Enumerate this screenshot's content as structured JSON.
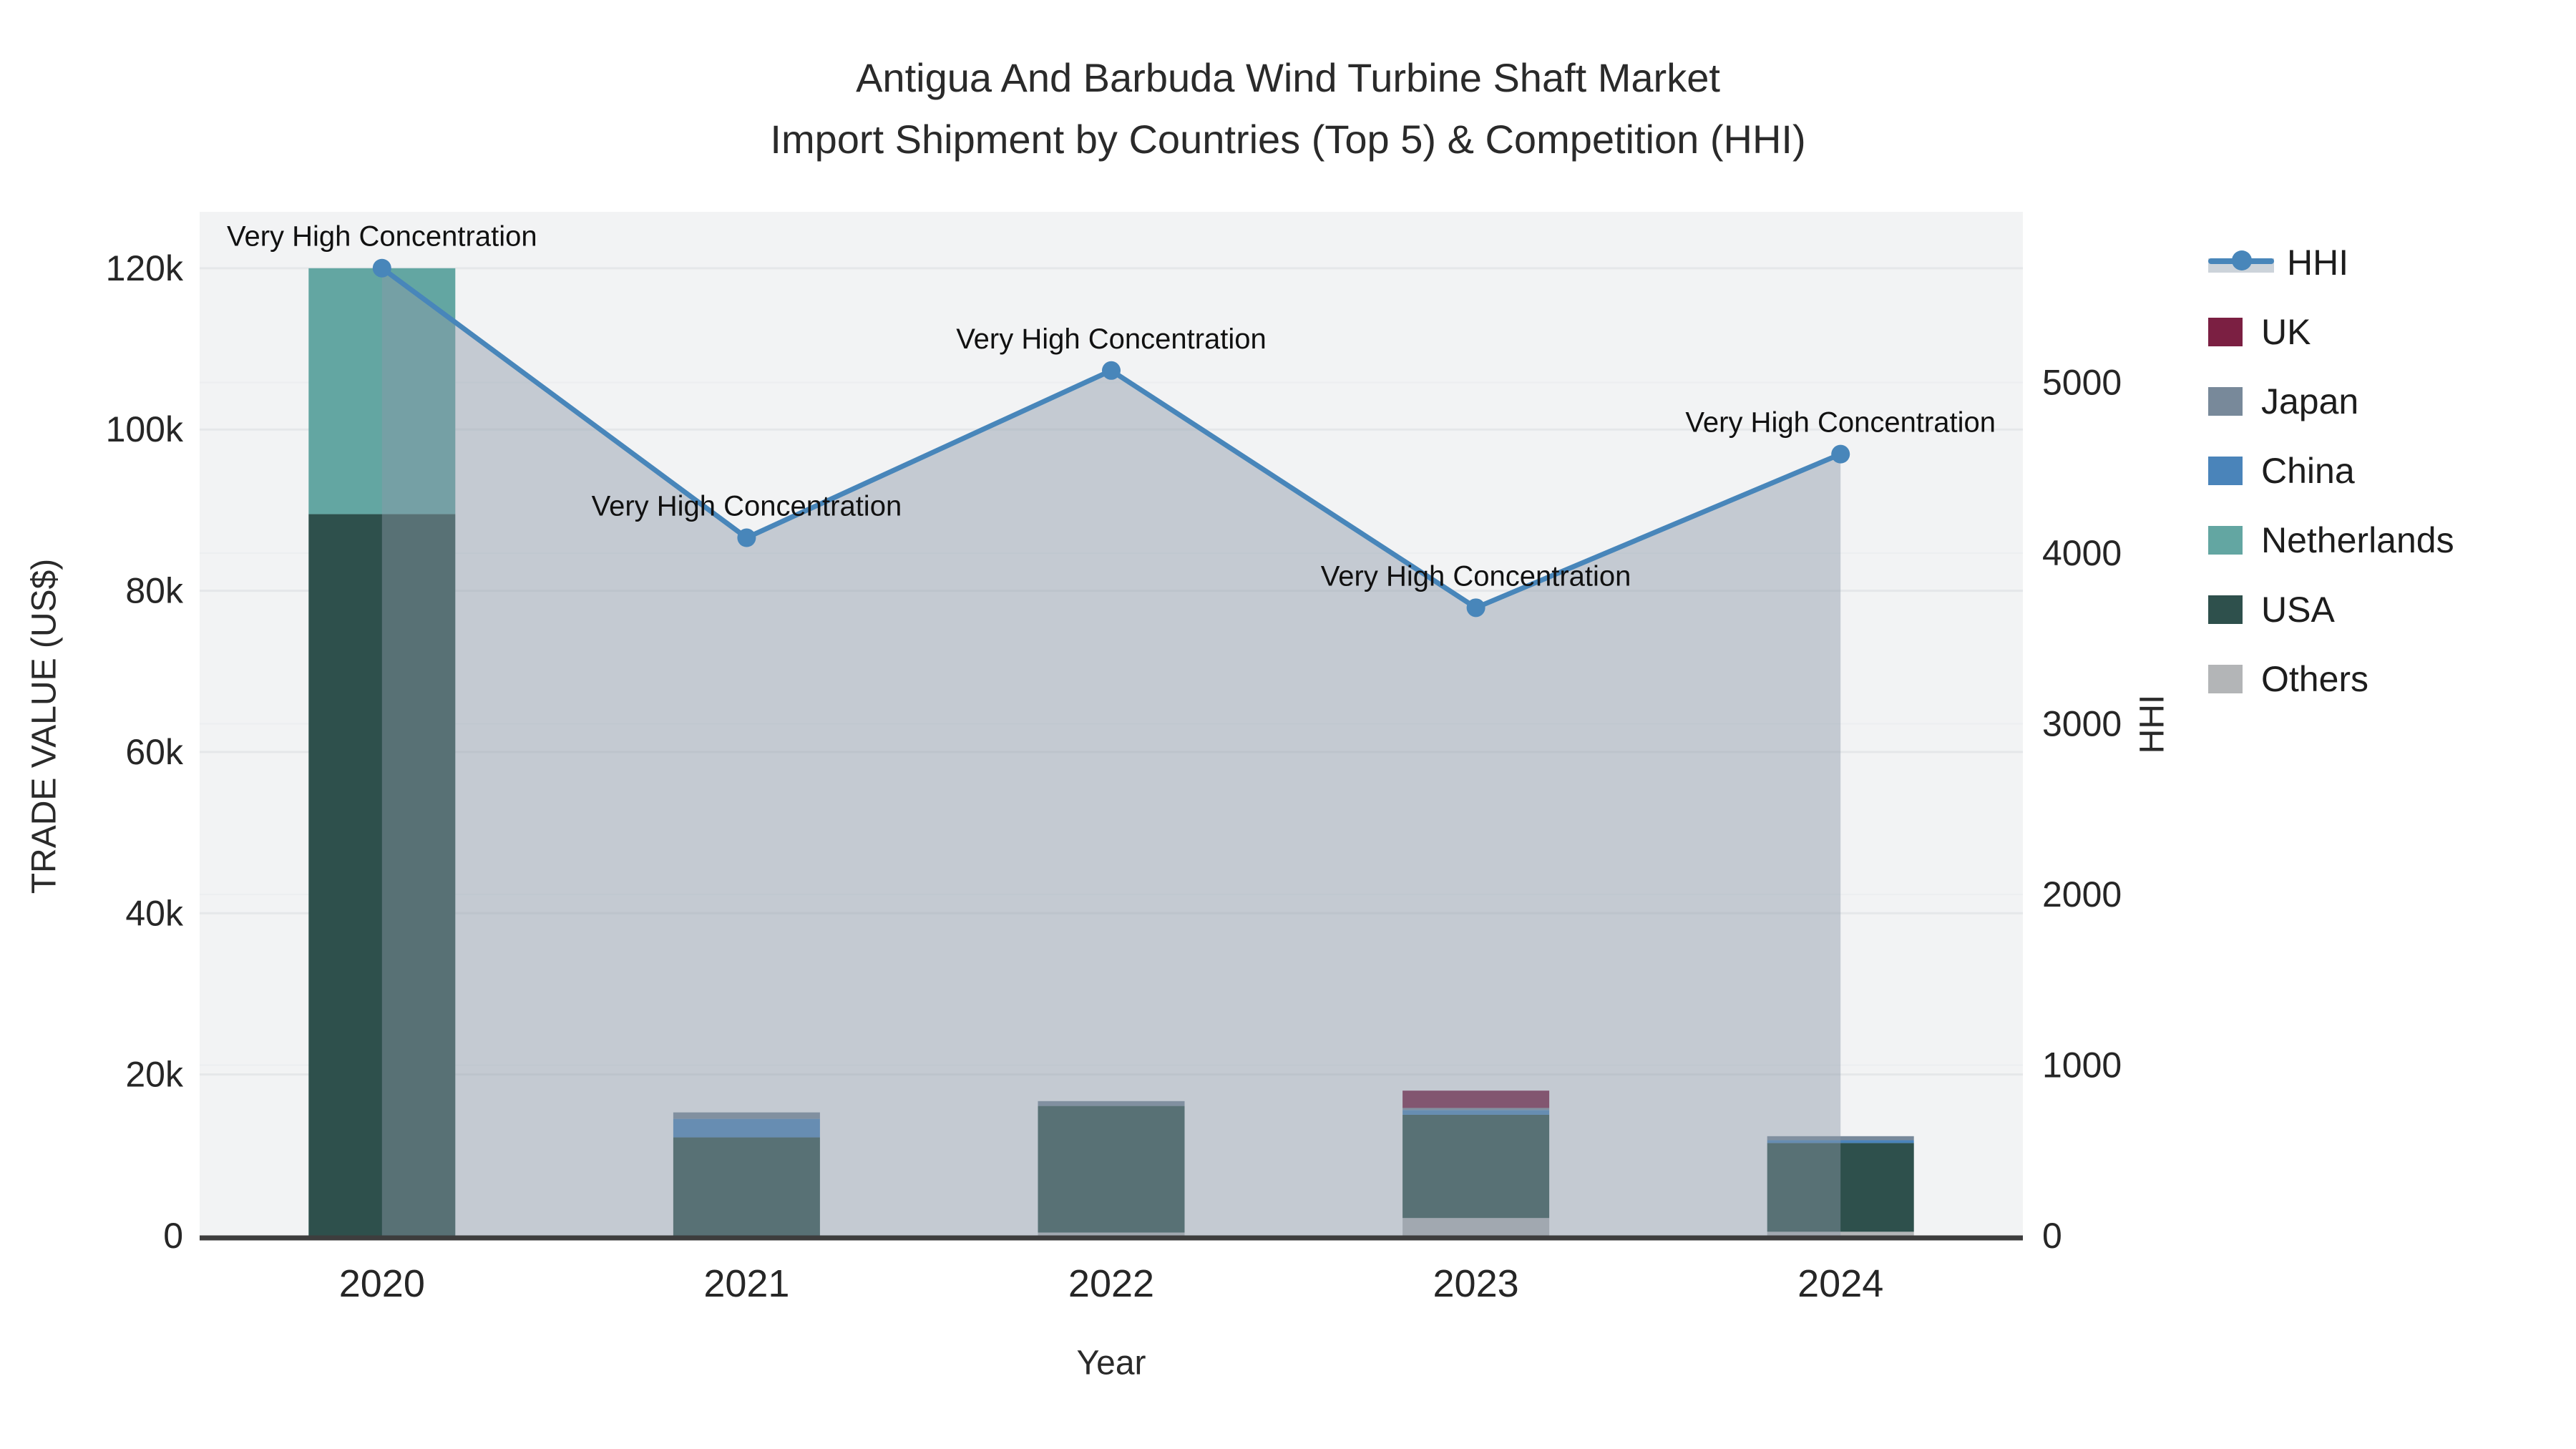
{
  "figure": {
    "title_line1": "Antigua And Barbuda Wind Turbine Shaft Market",
    "title_line2": "Import Shipment by Countries (Top 5) & Competition (HHI)",
    "x_axis_title": "Year",
    "y_axis_title_left": "TRADE VALUE (US$)",
    "y_axis_title_right": "HHI"
  },
  "chart_data": {
    "type": "bar+line",
    "title": "Antigua And Barbuda Wind Turbine Shaft Market — Import Shipment by Countries (Top 5) & Competition (HHI)",
    "categories": [
      "2020",
      "2021",
      "2022",
      "2023",
      "2024"
    ],
    "bar_value_unit": "thousand US$",
    "stacked_bars_bottom_to_top": [
      {
        "name": "Others",
        "color": "#b3b5b7",
        "values": [
          0,
          0,
          0.4,
          2.2,
          0.5
        ]
      },
      {
        "name": "USA",
        "color": "#2e504c",
        "values": [
          89.5,
          12.2,
          15.7,
          12.8,
          11.0
        ]
      },
      {
        "name": "Netherlands",
        "color": "#63a6a2",
        "values": [
          30.5,
          0,
          0,
          0,
          0
        ]
      },
      {
        "name": "China",
        "color": "#4a84ba",
        "values": [
          0,
          2.3,
          0,
          0.6,
          0.35
        ]
      },
      {
        "name": "Japan",
        "color": "#78899a",
        "values": [
          0,
          0.8,
          0.6,
          0.25,
          0.5
        ]
      },
      {
        "name": "UK",
        "color": "#7b1f42",
        "values": [
          0,
          0,
          0,
          2.15,
          0
        ]
      }
    ],
    "hhi_line": {
      "name": "HHI",
      "color": "#4886ba",
      "area_fill": "rgba(140,153,168,0.45)",
      "values": [
        5670,
        4090,
        5070,
        3680,
        4580
      ]
    },
    "annotations": [
      {
        "x_index": 0,
        "text": "Very High Concentration"
      },
      {
        "x_index": 1,
        "text": "Very High Concentration"
      },
      {
        "x_index": 2,
        "text": "Very High Concentration"
      },
      {
        "x_index": 3,
        "text": "Very High Concentration"
      },
      {
        "x_index": 4,
        "text": "Very High Concentration"
      }
    ],
    "y_left": {
      "range": [
        0,
        127
      ],
      "ticks": [
        0,
        20,
        40,
        60,
        80,
        100,
        120
      ],
      "tick_labels": [
        "0",
        "20k",
        "40k",
        "60k",
        "80k",
        "100k",
        "120k"
      ]
    },
    "y_right": {
      "range": [
        0,
        6000
      ],
      "ticks": [
        0,
        1000,
        2000,
        3000,
        4000,
        5000
      ],
      "tick_labels": [
        "0",
        "1000",
        "2000",
        "3000",
        "4000",
        "5000"
      ]
    },
    "legend": [
      {
        "label": "HHI",
        "swatch": "line",
        "color": "#4886ba"
      },
      {
        "label": "UK",
        "swatch": "square",
        "color": "#7b1f42"
      },
      {
        "label": "Japan",
        "swatch": "square",
        "color": "#78899a"
      },
      {
        "label": "China",
        "swatch": "square",
        "color": "#4a84ba"
      },
      {
        "label": "Netherlands",
        "swatch": "square",
        "color": "#63a6a2"
      },
      {
        "label": "USA",
        "swatch": "square",
        "color": "#2e504c"
      },
      {
        "label": "Others",
        "swatch": "square",
        "color": "#b3b5b7"
      }
    ],
    "style": {
      "plot_bg": "#f2f3f4",
      "grid_left": "#e5e7e9",
      "grid_right": "#eceef0",
      "axis_line": "#3d3d3d",
      "text": "#262626"
    }
  }
}
